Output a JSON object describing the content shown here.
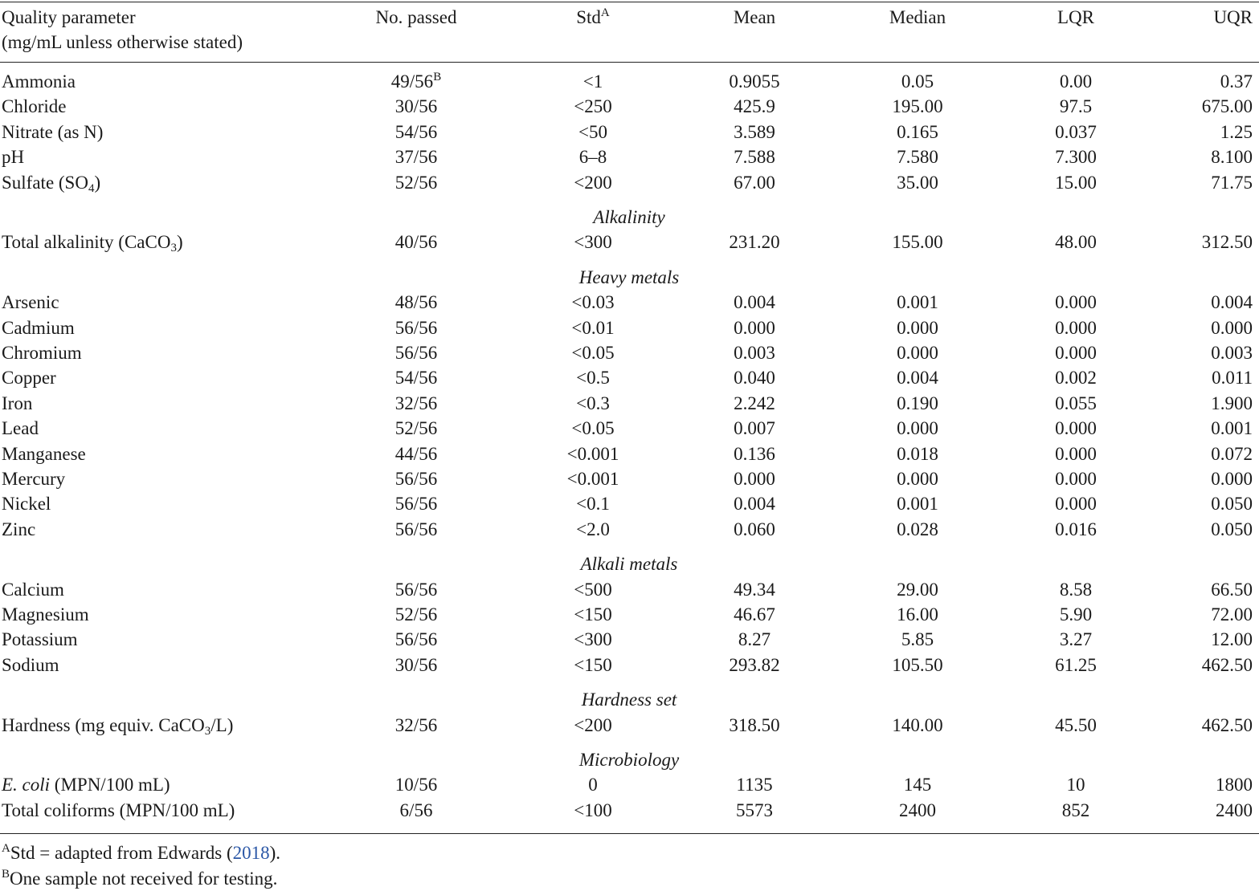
{
  "header": {
    "param_line1": "Quality parameter",
    "param_line2": "(mg/mL unless otherwise stated)",
    "passed": "No. passed",
    "std": "Std",
    "std_sup": "A",
    "mean": "Mean",
    "median": "Median",
    "lqr": "LQR",
    "uqr": "UQR"
  },
  "rows": [
    {
      "param": "Ammonia",
      "passed": "49/56",
      "passed_sup": "B",
      "std": "<1",
      "mean": "0.9055",
      "median": "0.05",
      "lqr": "0.00",
      "uqr": "0.37"
    },
    {
      "param": "Chloride",
      "passed": "30/56",
      "std": "<250",
      "mean": "425.9",
      "median": "195.00",
      "lqr": "97.5",
      "uqr": "675.00"
    },
    {
      "param": "Nitrate (as N)",
      "passed": "54/56",
      "std": "<50",
      "mean": "3.589",
      "median": "0.165",
      "lqr": "0.037",
      "uqr": "1.25"
    },
    {
      "param": "pH",
      "passed": "37/56",
      "std": "6–8",
      "mean": "7.588",
      "median": "7.580",
      "lqr": "7.300",
      "uqr": "8.100"
    },
    {
      "param_pre": "Sulfate (SO",
      "param_sub": "4",
      "param_post": ")",
      "passed": "52/56",
      "std": "<200",
      "mean": "67.00",
      "median": "35.00",
      "lqr": "15.00",
      "uqr": "71.75"
    },
    {
      "section": "Alkalinity"
    },
    {
      "param_pre": "Total alkalinity (CaCO",
      "param_sub": "3",
      "param_post": ")",
      "passed": "40/56",
      "std": "<300",
      "mean": "231.20",
      "median": "155.00",
      "lqr": "48.00",
      "uqr": "312.50"
    },
    {
      "section": "Heavy metals"
    },
    {
      "param": "Arsenic",
      "passed": "48/56",
      "std": "<0.03",
      "mean": "0.004",
      "median": "0.001",
      "lqr": "0.000",
      "uqr": "0.004"
    },
    {
      "param": "Cadmium",
      "passed": "56/56",
      "std": "<0.01",
      "mean": "0.000",
      "median": "0.000",
      "lqr": "0.000",
      "uqr": "0.000"
    },
    {
      "param": "Chromium",
      "passed": "56/56",
      "std": "<0.05",
      "mean": "0.003",
      "median": "0.000",
      "lqr": "0.000",
      "uqr": "0.003"
    },
    {
      "param": "Copper",
      "passed": "54/56",
      "std": "<0.5",
      "mean": "0.040",
      "median": "0.004",
      "lqr": "0.002",
      "uqr": "0.011"
    },
    {
      "param": "Iron",
      "passed": "32/56",
      "std": "<0.3",
      "mean": "2.242",
      "median": "0.190",
      "lqr": "0.055",
      "uqr": "1.900"
    },
    {
      "param": "Lead",
      "passed": "52/56",
      "std": "<0.05",
      "mean": "0.007",
      "median": "0.000",
      "lqr": "0.000",
      "uqr": "0.001"
    },
    {
      "param": "Manganese",
      "passed": "44/56",
      "std": "<0.001",
      "mean": "0.136",
      "median": "0.018",
      "lqr": "0.000",
      "uqr": "0.072"
    },
    {
      "param": "Mercury",
      "passed": "56/56",
      "std": "<0.001",
      "mean": "0.000",
      "median": "0.000",
      "lqr": "0.000",
      "uqr": "0.000"
    },
    {
      "param": "Nickel",
      "passed": "56/56",
      "std": "<0.1",
      "mean": "0.004",
      "median": "0.001",
      "lqr": "0.000",
      "uqr": "0.050"
    },
    {
      "param": "Zinc",
      "passed": "56/56",
      "std": "<2.0",
      "mean": "0.060",
      "median": "0.028",
      "lqr": "0.016",
      "uqr": "0.050"
    },
    {
      "section": "Alkali metals"
    },
    {
      "param": "Calcium",
      "passed": "56/56",
      "std": "<500",
      "mean": "49.34",
      "median": "29.00",
      "lqr": "8.58",
      "uqr": "66.50"
    },
    {
      "param": "Magnesium",
      "passed": "52/56",
      "std": "<150",
      "mean": "46.67",
      "median": "16.00",
      "lqr": "5.90",
      "uqr": "72.00"
    },
    {
      "param": "Potassium",
      "passed": "56/56",
      "std": "<300",
      "mean": "8.27",
      "median": "5.85",
      "lqr": "3.27",
      "uqr": "12.00"
    },
    {
      "param": "Sodium",
      "passed": "30/56",
      "std": "<150",
      "mean": "293.82",
      "median": "105.50",
      "lqr": "61.25",
      "uqr": "462.50"
    },
    {
      "section": "Hardness set"
    },
    {
      "param_pre": "Hardness (mg equiv. CaCO",
      "param_sub": "3",
      "param_post": "/L)",
      "passed": "32/56",
      "std": "<200",
      "mean": "318.50",
      "median": "140.00",
      "lqr": "45.50",
      "uqr": "462.50"
    },
    {
      "section": "Microbiology"
    },
    {
      "param_italic": "E. coli",
      "param_post": " (MPN/100 mL)",
      "passed": "10/56",
      "std": "0",
      "mean": "1135",
      "median": "145",
      "lqr": "10",
      "uqr": "1800"
    },
    {
      "param": "Total coliforms (MPN/100 mL)",
      "passed": "6/56",
      "std": "<100",
      "mean": "5573",
      "median": "2400",
      "lqr": "852",
      "uqr": "2400"
    }
  ],
  "footnotes": {
    "a_marker": "A",
    "a_pre": "Std = adapted from Edwards (",
    "a_cite": "2018",
    "a_post": ").",
    "b_marker": "B",
    "b_text": "One sample not received for testing."
  },
  "colors": {
    "citation_link": "#2b57a6"
  }
}
